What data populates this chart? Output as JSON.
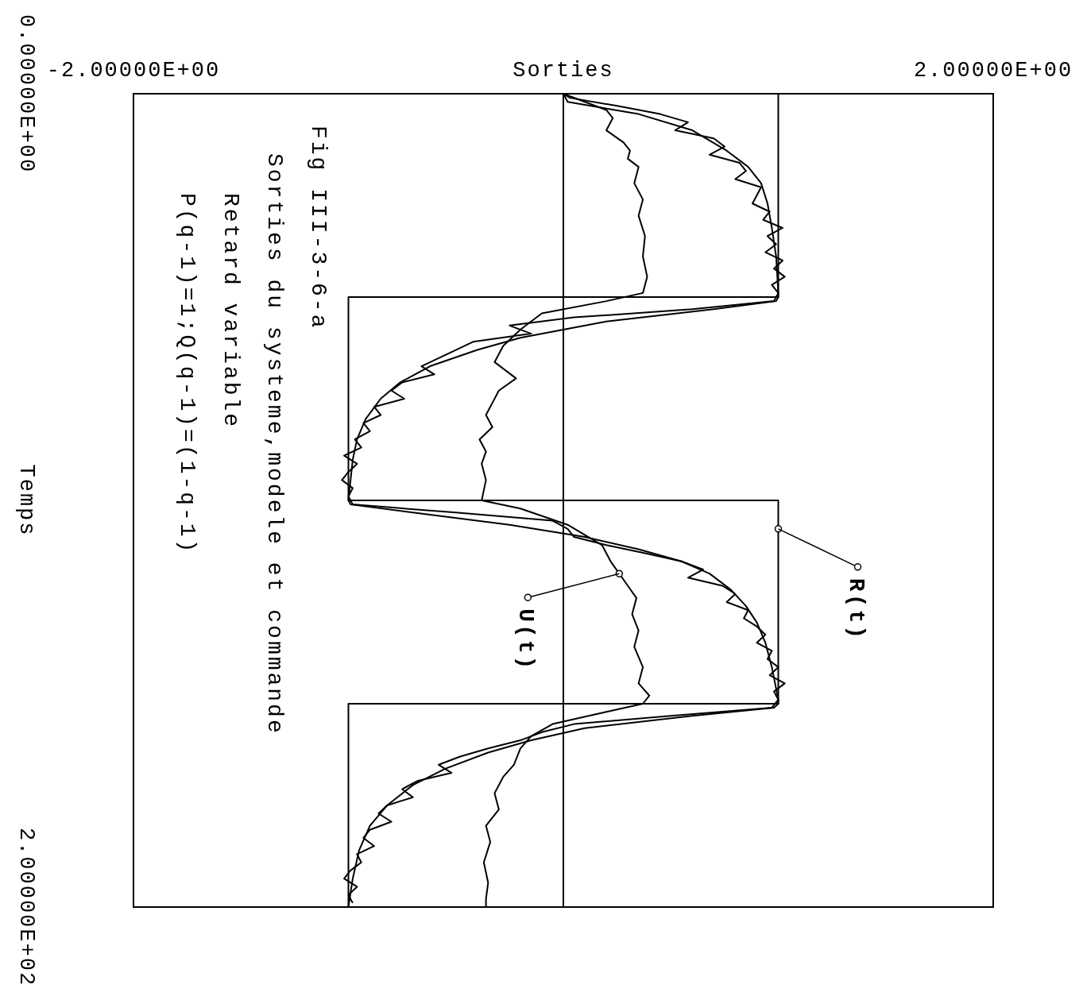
{
  "chart_data": {
    "type": "line",
    "title": "Fig III-3-6-a",
    "subtitle": "Sorties du systeme,modele et commande",
    "xlabel": "Sorties",
    "ylabel": "Temps",
    "xlim": [
      -2,
      2
    ],
    "ylim": [
      200,
      0
    ],
    "xticks": [
      {
        "value": -2,
        "label": "-2.00000E+00"
      },
      {
        "value": 2,
        "label": "2.00000E+00"
      }
    ],
    "yticks": [
      {
        "value": 0,
        "label": "0.00000E+00"
      },
      {
        "value": 200,
        "label": "2.00000E+02"
      }
    ],
    "grid": false,
    "marker": "none",
    "line_style": "solid",
    "ref_lines": [
      {
        "axis": "x",
        "value": 0,
        "color": "#000000"
      }
    ],
    "annotations": [
      "Retard variable",
      "P(q-1)=1;Q(q-1)=(1-q-1)",
      {
        "text": "R(t)",
        "x": 1,
        "y": 107
      },
      {
        "text": "U(t)",
        "x": 0.26,
        "y": 118
      }
    ],
    "series": [
      {
        "color": "#000000",
        "x": [
          1,
          1,
          -1,
          -1,
          1,
          1,
          -1,
          -1
        ],
        "values": [
          0,
          50,
          50,
          100,
          100,
          150,
          150,
          200
        ]
      },
      {
        "color": "#000000",
        "values": [
          0,
          2,
          5,
          9,
          14,
          18,
          22,
          27,
          33,
          40,
          49,
          50,
          51,
          53,
          56,
          60,
          63,
          67,
          71,
          75,
          80,
          85,
          90,
          100,
          101,
          103,
          106,
          109,
          112,
          115,
          118,
          122,
          126,
          130,
          135,
          141,
          149,
          150,
          151,
          153,
          156,
          159,
          162,
          166,
          170,
          175,
          180,
          186,
          193,
          200
        ],
        "x": [
          0,
          0.02,
          0.35,
          0.6,
          0.76,
          0.86,
          0.92,
          0.95,
          0.97,
          0.99,
          1,
          1,
          0.99,
          0.7,
          0.2,
          -0.2,
          -0.4,
          -0.62,
          -0.76,
          -0.85,
          -0.92,
          -0.96,
          -0.98,
          -1,
          -0.99,
          -0.7,
          -0.25,
          0.1,
          0.35,
          0.55,
          0.68,
          0.78,
          0.85,
          0.9,
          0.94,
          0.97,
          1,
          1,
          0.98,
          0.6,
          0.1,
          -0.15,
          -0.35,
          -0.55,
          -0.7,
          -0.82,
          -0.9,
          -0.95,
          -0.98,
          -1
        ]
      },
      {
        "color": "#000000",
        "values": [
          0,
          1,
          3,
          5,
          7,
          9,
          11,
          13,
          15,
          17,
          19,
          21,
          23,
          25,
          27,
          29,
          31,
          33,
          35,
          37,
          39,
          41,
          43,
          45,
          47,
          49,
          51,
          53,
          55,
          57,
          59,
          61,
          63,
          65,
          67,
          69,
          71,
          73,
          75,
          77,
          79,
          81,
          83,
          85,
          87,
          89,
          91,
          93,
          95,
          97,
          99,
          101,
          103,
          105,
          107,
          109,
          111,
          113,
          115,
          117,
          119,
          121,
          123,
          125,
          127,
          129,
          131,
          133,
          135,
          137,
          139,
          141,
          143,
          145,
          147,
          149,
          151,
          153,
          155,
          157,
          159,
          161,
          163,
          165,
          167,
          169,
          171,
          173,
          175,
          177,
          179,
          181,
          183,
          185,
          187,
          189,
          191,
          193,
          195,
          197,
          199
        ],
        "x": [
          0,
          0.03,
          0.25,
          0.45,
          0.58,
          0.52,
          0.7,
          0.75,
          0.68,
          0.82,
          0.85,
          0.8,
          0.92,
          0.9,
          0.88,
          0.96,
          0.93,
          1.02,
          0.95,
          0.99,
          0.94,
          1.02,
          0.98,
          1.03,
          0.97,
          1.0,
          0.98,
          0.6,
          0.05,
          -0.25,
          -0.15,
          -0.42,
          -0.5,
          -0.58,
          -0.66,
          -0.6,
          -0.75,
          -0.8,
          -0.74,
          -0.88,
          -0.85,
          -0.93,
          -0.9,
          -0.97,
          -0.94,
          -1.02,
          -0.96,
          -1.0,
          -1.03,
          -0.98,
          -1.0,
          -0.98,
          -0.5,
          -0.05,
          0.02,
          0.05,
          0.2,
          0.38,
          0.55,
          0.65,
          0.58,
          0.74,
          0.8,
          0.76,
          0.86,
          0.84,
          0.9,
          0.94,
          0.9,
          0.97,
          0.95,
          1.0,
          0.96,
          1.03,
          0.98,
          1.0,
          0.97,
          0.5,
          0.05,
          -0.1,
          -0.2,
          -0.35,
          -0.48,
          -0.58,
          -0.52,
          -0.68,
          -0.75,
          -0.7,
          -0.82,
          -0.86,
          -0.8,
          -0.9,
          -0.93,
          -0.88,
          -0.96,
          -0.94,
          -0.99,
          -1.02,
          -0.96,
          -1.0,
          -0.98
        ]
      },
      {
        "color": "#000000",
        "values": [
          0,
          2,
          4,
          6,
          9,
          12,
          14,
          16,
          18,
          22,
          26,
          30,
          35,
          40,
          45,
          49,
          51,
          54,
          58,
          62,
          66,
          70,
          73,
          76,
          79,
          82,
          85,
          88,
          91,
          95,
          100,
          102,
          106,
          111,
          115,
          118,
          121,
          124,
          128,
          132,
          136,
          141,
          145,
          148,
          150,
          152,
          155,
          158,
          161,
          165,
          168,
          172,
          176,
          180,
          184,
          189,
          194,
          198,
          200
        ],
        "x": [
          0,
          0.1,
          0.2,
          0.23,
          0.2,
          0.28,
          0.31,
          0.3,
          0.35,
          0.33,
          0.37,
          0.35,
          0.38,
          0.37,
          0.39,
          0.37,
          0.2,
          -0.1,
          -0.2,
          -0.28,
          -0.32,
          -0.22,
          -0.3,
          -0.33,
          -0.36,
          -0.33,
          -0.39,
          -0.36,
          -0.38,
          -0.36,
          -0.38,
          -0.2,
          0.02,
          0.18,
          0.22,
          0.26,
          0.3,
          0.34,
          0.32,
          0.35,
          0.33,
          0.37,
          0.35,
          0.4,
          0.37,
          0.2,
          -0.05,
          -0.15,
          -0.2,
          -0.23,
          -0.28,
          -0.32,
          -0.3,
          -0.36,
          -0.34,
          -0.37,
          -0.35,
          -0.36,
          -0.36
        ]
      }
    ]
  }
}
